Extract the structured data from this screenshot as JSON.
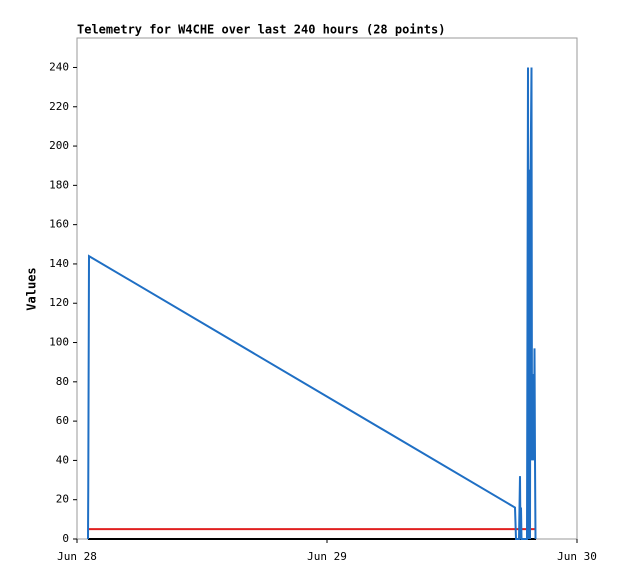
{
  "chart_data": {
    "type": "line",
    "title": "Telemetry for W4CHE over last 240 hours (28 points)",
    "y_label": "Values",
    "xlim": [
      0,
      2
    ],
    "xticks": [
      {
        "value": 0,
        "label": "Jun 28"
      },
      {
        "value": 1,
        "label": "Jun 29"
      },
      {
        "value": 2,
        "label": "Jun 30"
      }
    ],
    "ylim": [
      0,
      255
    ],
    "yticks": [
      0,
      20,
      40,
      60,
      80,
      100,
      120,
      140,
      160,
      180,
      200,
      220,
      240
    ],
    "grid": false,
    "series": [
      {
        "color": "#000000",
        "x": [
          0.044,
          1.836
        ],
        "values": [
          0,
          0
        ]
      },
      {
        "color": "#e02020",
        "x": [
          0.044,
          1.836
        ],
        "values": [
          5,
          5
        ]
      },
      {
        "color": "#1f6fc4",
        "x": [
          0.044,
          0.045,
          0.048,
          1.752,
          1.756,
          1.768,
          1.77,
          1.772,
          1.774,
          1.776,
          1.778,
          1.8,
          1.804,
          1.806,
          1.808,
          1.81,
          1.812,
          1.814,
          1.818,
          1.82,
          1.824,
          1.828,
          1.83,
          1.832,
          1.834
        ],
        "values": [
          0,
          25,
          144,
          16,
          0,
          0,
          16,
          32,
          0,
          16,
          0,
          0,
          240,
          0,
          188,
          84,
          0,
          180,
          240,
          40,
          84,
          40,
          97,
          40,
          0
        ]
      }
    ]
  }
}
